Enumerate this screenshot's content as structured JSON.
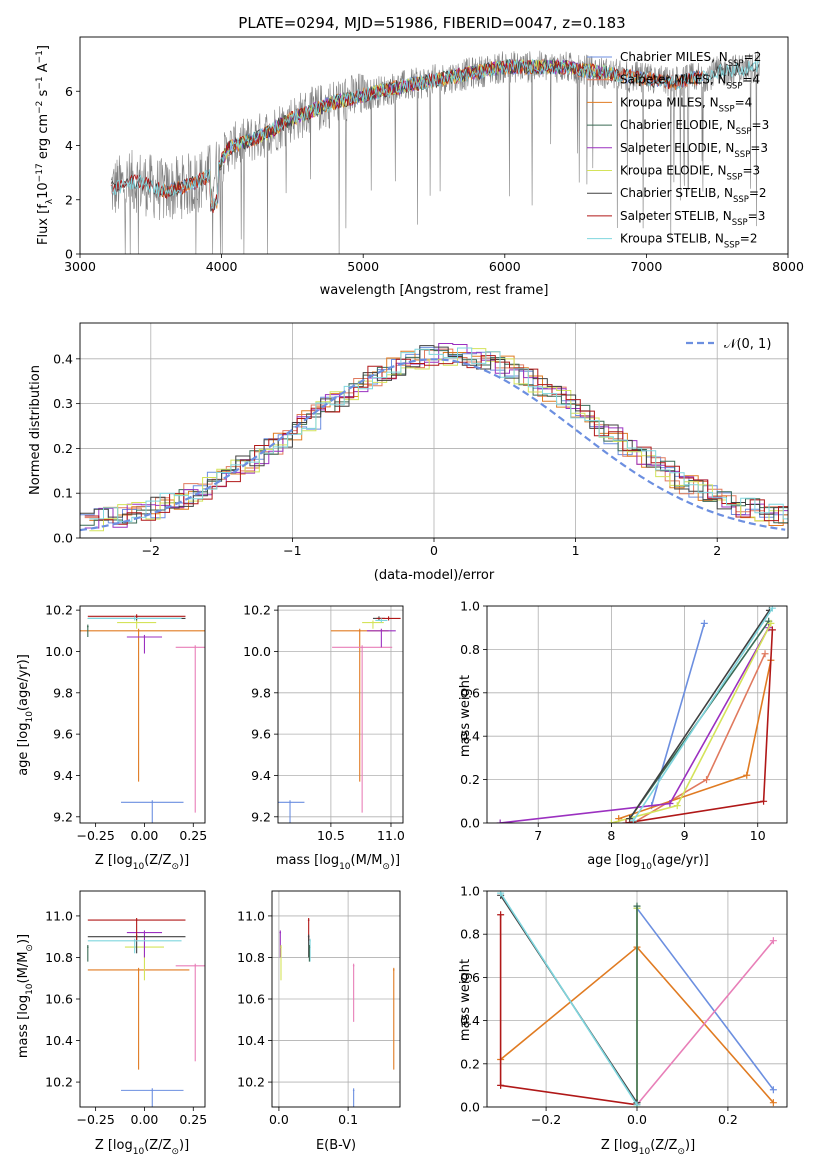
{
  "title": "PLATE=0294, MJD=51986, FIBERID=0047, z=0.183",
  "colors": {
    "Chabrier MILES": "#6c8fe0",
    "Salpeter MILES": "#e07a5f",
    "Kroupa MILES": "#e07b22",
    "Chabrier ELODIE": "#3a6b55",
    "Salpeter ELODIE": "#9b30c0",
    "Kroupa ELODIE": "#d4e35a",
    "Chabrier STELIB": "#404040",
    "Salpeter STELIB": "#b01818",
    "Kroupa STELIB": "#7fd6de",
    "data": "#808080",
    "pinkline": "#e87fb8"
  },
  "chart_data": [
    {
      "type": "line",
      "name": "spectrum",
      "xlabel": "wavelength [Angstrom, rest frame]",
      "ylabel_parts": [
        "Flux [f",
        "λ",
        "10",
        "−17",
        " erg cm",
        "−2",
        " s",
        "−1",
        " A",
        "−1",
        "]"
      ],
      "xlim": [
        3000,
        8000
      ],
      "ylim": [
        0,
        8
      ],
      "xticks": [
        "3000",
        "4000",
        "5000",
        "6000",
        "7000",
        "8000"
      ],
      "yticks": [
        "0",
        "2",
        "4",
        "6"
      ],
      "legend": [
        {
          "label": "Chabrier MILES, N",
          "sub": "SSP",
          "tail": "=2"
        },
        {
          "label": "Salpeter MILES, N",
          "sub": "SSP",
          "tail": "=4"
        },
        {
          "label": "Kroupa MILES, N",
          "sub": "SSP",
          "tail": "=4"
        },
        {
          "label": "Chabrier ELODIE, N",
          "sub": "SSP",
          "tail": "=3"
        },
        {
          "label": "Salpeter ELODIE, N",
          "sub": "SSP",
          "tail": "=3"
        },
        {
          "label": "Kroupa ELODIE, N",
          "sub": "SSP",
          "tail": "=3"
        },
        {
          "label": "Chabrier STELIB, N",
          "sub": "SSP",
          "tail": "=2"
        },
        {
          "label": "Salpeter STELIB, N",
          "sub": "SSP",
          "tail": "=3"
        },
        {
          "label": "Kroupa STELIB, N",
          "sub": "SSP",
          "tail": "=2"
        }
      ],
      "data_envelope": [
        [
          3220,
          2.4
        ],
        [
          3400,
          2.7
        ],
        [
          3600,
          2.3
        ],
        [
          3800,
          2.6
        ],
        [
          3950,
          3.0
        ],
        [
          4050,
          3.9
        ],
        [
          4300,
          4.4
        ],
        [
          4500,
          5.0
        ],
        [
          4800,
          5.6
        ],
        [
          5200,
          6.1
        ],
        [
          5600,
          6.5
        ],
        [
          6000,
          6.9
        ],
        [
          6400,
          6.9
        ],
        [
          6800,
          6.6
        ],
        [
          7200,
          6.3
        ],
        [
          7500,
          6.7
        ],
        [
          7800,
          6.9
        ]
      ]
    },
    {
      "type": "line",
      "name": "residuals",
      "xlabel": "(data-model)/error",
      "ylabel": "Normed distribution",
      "xlim": [
        -2.5,
        2.5
      ],
      "ylim": [
        0,
        0.48
      ],
      "xticks": [
        "−2",
        "−1",
        "0",
        "1",
        "2"
      ],
      "yticks": [
        "0.0",
        "0.1",
        "0.2",
        "0.3",
        "0.4"
      ],
      "legend_math": "𝒩(0, 1)",
      "gaussian": {
        "mean": 0,
        "sigma": 1
      }
    },
    {
      "type": "scatter",
      "name": "age-vs-Z",
      "xlabel_parts": [
        "Z [log",
        "10",
        "(Z/Z",
        "⊙",
        ")]"
      ],
      "ylabel_parts": [
        "age  [log",
        "10",
        "(age/yr)]"
      ],
      "xlim": [
        -0.33,
        0.31
      ],
      "ylim": [
        9.17,
        10.22
      ],
      "xticks": [
        "−0.25",
        "0.00",
        "0.25"
      ],
      "yticks": [
        "9.2",
        "9.4",
        "9.6",
        "9.8",
        "10.0",
        "10.2"
      ],
      "points": [
        {
          "c": "Chabrier MILES",
          "x": 0.04,
          "xerr": 0.16,
          "y": 9.27,
          "yerr": 0.86
        },
        {
          "c": "Kroupa MILES",
          "x": -0.03,
          "xerr": 0.34,
          "y": 10.1,
          "yerr": 0.73
        },
        {
          "c": "Salpeter ELODIE",
          "x": 0.0,
          "xerr": 0.09,
          "y": 10.07,
          "yerr": 0.08
        },
        {
          "c": "Kroupa ELODIE",
          "x": -0.04,
          "xerr": 0.1,
          "y": 10.14,
          "yerr": 0.03
        },
        {
          "c": "Chabrier STELIB",
          "x": -0.04,
          "xerr": 0.25,
          "y": 10.16,
          "yerr": 0.01
        },
        {
          "c": "Salpeter STELIB",
          "x": -0.04,
          "xerr": 0.25,
          "y": 10.17,
          "yerr": 0.01
        },
        {
          "c": "Kroupa STELIB",
          "x": -0.05,
          "xerr": 0.24,
          "y": 10.16,
          "yerr": 0.01
        },
        {
          "c": "Chabrier ELODIE",
          "x": -0.29,
          "xerr": 0.0,
          "y": 10.12,
          "yerr": 0.05
        },
        {
          "c": "pinkline",
          "x": 0.26,
          "xerr": 0.1,
          "y": 10.02,
          "yerr": 0.8
        }
      ]
    },
    {
      "type": "scatter",
      "name": "age-vs-mass",
      "xlabel_parts": [
        "mass [log",
        "10",
        "(M/M",
        "⊙",
        ")]"
      ],
      "xlim": [
        10.06,
        11.1
      ],
      "ylim": [
        9.17,
        10.22
      ],
      "xticks": [
        "10.5",
        "11.0"
      ],
      "yticks": [
        "9.2",
        "9.4",
        "9.6",
        "9.8",
        "10.0",
        "10.2"
      ],
      "points": [
        {
          "c": "Chabrier MILES",
          "x": 10.16,
          "xerr": 0.12,
          "y": 9.27,
          "yerr": 0.86
        },
        {
          "c": "Kroupa MILES",
          "x": 10.74,
          "xerr": 0.24,
          "y": 10.1,
          "yerr": 0.73
        },
        {
          "c": "pinkline",
          "x": 10.76,
          "xerr": 0.25,
          "y": 10.02,
          "yerr": 0.8
        },
        {
          "c": "Salpeter ELODIE",
          "x": 10.92,
          "xerr": 0.12,
          "y": 10.1,
          "yerr": 0.08
        },
        {
          "c": "Kroupa ELODIE",
          "x": 10.85,
          "xerr": 0.09,
          "y": 10.14,
          "yerr": 0.03
        },
        {
          "c": "Chabrier STELIB",
          "x": 10.9,
          "xerr": 0.05,
          "y": 10.16,
          "yerr": 0.01
        },
        {
          "c": "Salpeter STELIB",
          "x": 10.98,
          "xerr": 0.1,
          "y": 10.16,
          "yerr": 0.01
        },
        {
          "c": "Kroupa STELIB",
          "x": 10.92,
          "xerr": 0.05,
          "y": 10.15,
          "yerr": 0.01
        }
      ]
    },
    {
      "type": "line",
      "name": "mass-weight-vs-age",
      "xlabel_parts": [
        "age  [log",
        "10",
        "(age/yr)]"
      ],
      "ylabel": "mass weight",
      "xlim": [
        6.3,
        10.4
      ],
      "ylim": [
        0,
        1.0
      ],
      "xticks": [
        "7",
        "8",
        "9",
        "10"
      ],
      "yticks": [
        "0.0",
        "0.2",
        "0.4",
        "0.6",
        "0.8",
        "1.0"
      ],
      "series": [
        {
          "c": "Chabrier MILES",
          "x": [
            8.55,
            9.27
          ],
          "y": [
            0.08,
            0.92
          ]
        },
        {
          "c": "Salpeter MILES",
          "x": [
            8.3,
            9.3,
            10.1
          ],
          "y": [
            0.0,
            0.2,
            0.78
          ]
        },
        {
          "c": "Kroupa MILES",
          "x": [
            8.1,
            9.85,
            10.18
          ],
          "y": [
            0.02,
            0.22,
            0.75
          ]
        },
        {
          "c": "Chabrier ELODIE",
          "x": [
            8.25,
            10.15
          ],
          "y": [
            0.02,
            0.93
          ]
        },
        {
          "c": "Salpeter ELODIE",
          "x": [
            6.48,
            8.8,
            10.15
          ],
          "y": [
            0.0,
            0.09,
            0.9
          ]
        },
        {
          "c": "Kroupa ELODIE",
          "x": [
            8.0,
            8.9,
            10.18
          ],
          "y": [
            0.0,
            0.08,
            0.92
          ]
        },
        {
          "c": "Chabrier STELIB",
          "x": [
            8.25,
            10.16
          ],
          "y": [
            0.02,
            0.98
          ]
        },
        {
          "c": "Salpeter STELIB",
          "x": [
            8.2,
            10.08,
            10.2
          ],
          "y": [
            0.0,
            0.1,
            0.89
          ]
        },
        {
          "c": "Kroupa STELIB",
          "x": [
            8.3,
            10.2
          ],
          "y": [
            0.01,
            0.99
          ]
        }
      ]
    },
    {
      "type": "scatter",
      "name": "mass-vs-Z",
      "xlabel_parts": [
        "Z [log",
        "10",
        "(Z/Z",
        "⊙",
        ")]"
      ],
      "ylabel_parts": [
        "mass [log",
        "10",
        "(M/M",
        "⊙",
        ")]"
      ],
      "xlim": [
        -0.33,
        0.31
      ],
      "ylim": [
        10.08,
        11.12
      ],
      "xticks": [
        "−0.25",
        "0.00",
        "0.25"
      ],
      "yticks": [
        "10.2",
        "10.4",
        "10.6",
        "10.8",
        "11.0"
      ],
      "points": [
        {
          "c": "Chabrier MILES",
          "x": 0.04,
          "xerr": 0.16,
          "y": 10.16,
          "yerr": 0.64
        },
        {
          "c": "Kroupa MILES",
          "x": -0.03,
          "xerr": 0.26,
          "y": 10.74,
          "yerr": 0.48
        },
        {
          "c": "pinkline",
          "x": 0.26,
          "xerr": 0.1,
          "y": 10.76,
          "yerr": 0.46
        },
        {
          "c": "Kroupa ELODIE",
          "x": 0.0,
          "xerr": 0.1,
          "y": 10.85,
          "yerr": 0.16
        },
        {
          "c": "Salpeter ELODIE",
          "x": 0.0,
          "xerr": 0.09,
          "y": 10.92,
          "yerr": 0.12
        },
        {
          "c": "Chabrier STELIB",
          "x": -0.04,
          "xerr": 0.25,
          "y": 10.9,
          "yerr": 0.08
        },
        {
          "c": "Salpeter STELIB",
          "x": -0.04,
          "xerr": 0.25,
          "y": 10.98,
          "yerr": 0.1
        },
        {
          "c": "Kroupa STELIB",
          "x": -0.05,
          "xerr": 0.24,
          "y": 10.88,
          "yerr": 0.06
        },
        {
          "c": "Chabrier ELODIE",
          "x": -0.29,
          "xerr": 0.0,
          "y": 10.85,
          "yerr": 0.07
        }
      ]
    },
    {
      "type": "scatter",
      "name": "mass-vs-EBV",
      "xlabel": "E(B-V)",
      "xlim": [
        -0.01,
        0.175
      ],
      "ylim": [
        10.08,
        11.12
      ],
      "xticks": [
        "0.0",
        "0.1"
      ],
      "yticks": [
        "10.2",
        "10.4",
        "10.6",
        "10.8",
        "11.0"
      ],
      "points": [
        {
          "c": "Salpeter ELODIE",
          "x": 0.002,
          "y": 10.92,
          "yerr": 0.12
        },
        {
          "c": "Kroupa ELODIE",
          "x": 0.003,
          "y": 10.85,
          "yerr": 0.16
        },
        {
          "c": "Salpeter STELIB",
          "x": 0.043,
          "y": 10.98,
          "yerr": 0.1
        },
        {
          "c": "Chabrier STELIB",
          "x": 0.043,
          "y": 10.9,
          "yerr": 0.1
        },
        {
          "c": "Kroupa STELIB",
          "x": 0.045,
          "y": 10.88,
          "yerr": 0.1
        },
        {
          "c": "Chabrier ELODIE",
          "x": 0.044,
          "y": 10.85,
          "yerr": 0.07
        },
        {
          "c": "pinkline",
          "x": 0.108,
          "y": 10.76,
          "yerr": 0.27
        },
        {
          "c": "Chabrier MILES",
          "x": 0.108,
          "y": 10.16,
          "yerr": 0.14
        },
        {
          "c": "Kroupa MILES",
          "x": 0.166,
          "y": 10.74,
          "yerr": 0.48
        }
      ]
    },
    {
      "type": "line",
      "name": "mass-weight-vs-Z",
      "xlabel_parts": [
        "Z [log",
        "10",
        "(Z/Z",
        "⊙",
        ")]"
      ],
      "ylabel": "mass weight",
      "xlim": [
        -0.33,
        0.33
      ],
      "ylim": [
        0,
        1.0
      ],
      "xticks": [
        "−0.2",
        "0.0",
        "0.2"
      ],
      "yticks": [
        "0.0",
        "0.2",
        "0.4",
        "0.6",
        "0.8",
        "1.0"
      ],
      "series": [
        {
          "c": "Chabrier MILES",
          "x": [
            0.0,
            0.3
          ],
          "y": [
            0.92,
            0.08
          ]
        },
        {
          "c": "Kroupa MILES",
          "x": [
            -0.3,
            0.0,
            0.3
          ],
          "y": [
            0.22,
            0.74,
            0.02
          ]
        },
        {
          "c": "pinkline",
          "x": [
            0.0,
            0.3
          ],
          "y": [
            0.01,
            0.77
          ]
        },
        {
          "c": "Salpeter STELIB",
          "x": [
            -0.3,
            -0.3,
            0.0
          ],
          "y": [
            0.89,
            0.1,
            0.01
          ]
        },
        {
          "c": "Kroupa ELODIE",
          "x": [
            0.0,
            0.0
          ],
          "y": [
            0.0,
            0.92
          ]
        },
        {
          "c": "Chabrier ELODIE",
          "x": [
            0.0,
            0.0
          ],
          "y": [
            0.02,
            0.93
          ]
        },
        {
          "c": "Chabrier STELIB",
          "x": [
            -0.3,
            0.0
          ],
          "y": [
            0.98,
            0.02
          ]
        },
        {
          "c": "Kroupa STELIB",
          "x": [
            -0.3,
            0.0
          ],
          "y": [
            0.99,
            0.01
          ]
        }
      ]
    }
  ]
}
